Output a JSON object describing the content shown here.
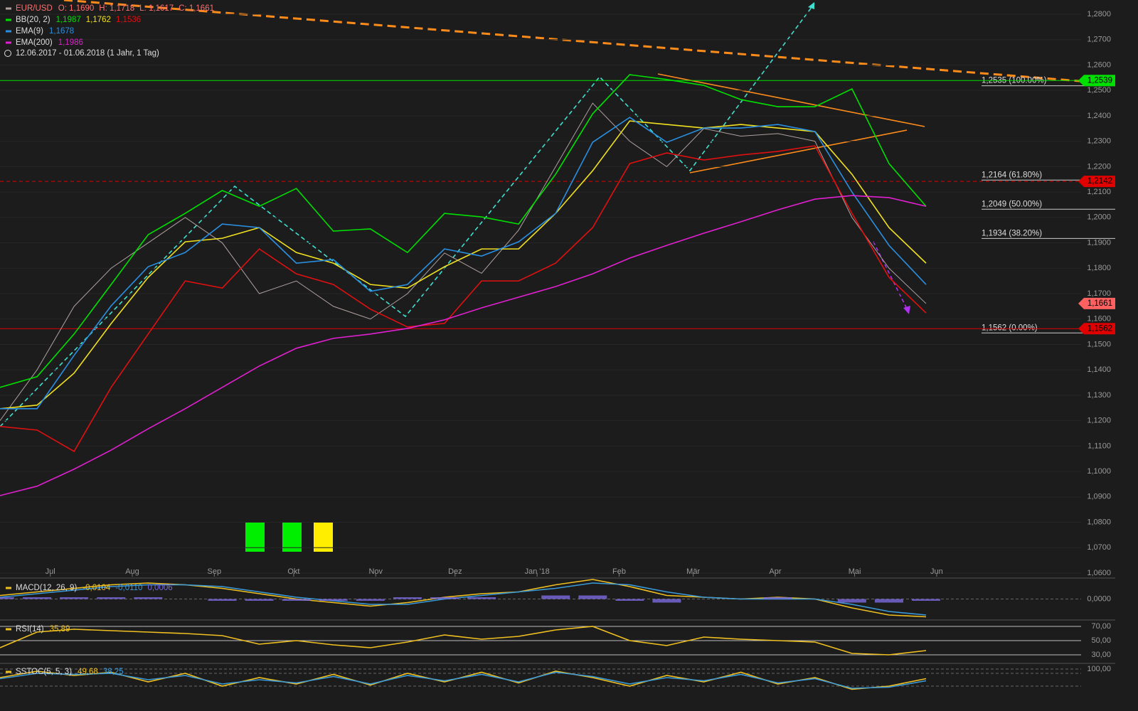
{
  "chart_data": [
    {
      "type": "line",
      "period": "12.06.2017 - 01.06.2018  (1 Jahr, 1 Tag)",
      "x": [
        0,
        14,
        28,
        42,
        56,
        70,
        84,
        98,
        112,
        126,
        140,
        154,
        168,
        182,
        196,
        210,
        224,
        238,
        252,
        266,
        280,
        294,
        308,
        322,
        336,
        350
      ],
      "xlim": [
        0,
        421.5
      ],
      "ylim": [
        1.06,
        1.28
      ],
      "xticks": [
        {
          "value": 19,
          "label": "Jul"
        },
        {
          "value": 50,
          "label": "Aug"
        },
        {
          "value": 81,
          "label": "Sep"
        },
        {
          "value": 111,
          "label": "Okt"
        },
        {
          "value": 142,
          "label": "Nov"
        },
        {
          "value": 172,
          "label": "Dez"
        },
        {
          "value": 203,
          "label": "Jan '18"
        },
        {
          "value": 234,
          "label": "Feb"
        },
        {
          "value": 262,
          "label": "Mär"
        },
        {
          "value": 293,
          "label": "Apr"
        },
        {
          "value": 323,
          "label": "Mai"
        },
        {
          "value": 354,
          "label": "Jun"
        }
      ],
      "yticks": [
        {
          "value": 1.06,
          "label": "1,0600"
        },
        {
          "value": 1.07,
          "label": "1,0700"
        },
        {
          "value": 1.08,
          "label": "1,0800"
        },
        {
          "value": 1.09,
          "label": "1,0900"
        },
        {
          "value": 1.1,
          "label": "1,1000"
        },
        {
          "value": 1.11,
          "label": "1,1100"
        },
        {
          "value": 1.12,
          "label": "1,1200"
        },
        {
          "value": 1.13,
          "label": "1,1300"
        },
        {
          "value": 1.14,
          "label": "1,1400"
        },
        {
          "value": 1.15,
          "label": "1,1500"
        },
        {
          "value": 1.16,
          "label": "1,1600"
        },
        {
          "value": 1.17,
          "label": "1,1700"
        },
        {
          "value": 1.18,
          "label": "1,1800"
        },
        {
          "value": 1.19,
          "label": "1,1900"
        },
        {
          "value": 1.2,
          "label": "1,2000"
        },
        {
          "value": 1.21,
          "label": "1,2100"
        },
        {
          "value": 1.22,
          "label": "1,2200"
        },
        {
          "value": 1.23,
          "label": "1,2300"
        },
        {
          "value": 1.24,
          "label": "1,2400"
        },
        {
          "value": 1.25,
          "label": "1,2500"
        },
        {
          "value": 1.26,
          "label": "1,2600"
        },
        {
          "value": 1.27,
          "label": "1,2700"
        },
        {
          "value": 1.28,
          "label": "1,2800"
        }
      ],
      "series": [
        {
          "name": "EUR/USD",
          "color": "#b0a0a0",
          "values": [
            1.12,
            1.14,
            1.165,
            1.18,
            1.19,
            1.2,
            1.19,
            1.17,
            1.175,
            1.165,
            1.16,
            1.17,
            1.186,
            1.178,
            1.195,
            1.22,
            1.245,
            1.23,
            1.22,
            1.235,
            1.232,
            1.233,
            1.23,
            1.2,
            1.18,
            1.1661
          ],
          "last": [
            {
              "value": 1.169,
              "label": "O: 1,1690"
            },
            {
              "value": 1.1718,
              "label": "H: 1,1718"
            },
            {
              "value": 1.1617,
              "label": "L: 1,1617"
            },
            {
              "value": 1.1661,
              "label": "C: 1,1661"
            }
          ]
        },
        {
          "name": "BB(20, 2)",
          "color": "#00e000",
          "values": [
            1.1331,
            1.1373,
            1.1541,
            1.1736,
            1.1932,
            1.2016,
            1.2106,
            1.2044,
            1.2114,
            1.1946,
            1.1955,
            1.1862,
            1.2016,
            1.2002,
            1.1974,
            1.217,
            1.2408,
            1.2562,
            1.2543,
            1.252,
            1.2464,
            1.2436,
            1.2436,
            1.2506,
            1.2212,
            1.2044
          ],
          "last": [
            {
              "value": 1.1987,
              "label": "1,1987"
            }
          ]
        },
        {
          "color": "#f0e020",
          "values": [
            1.1247,
            1.1261,
            1.1387,
            1.1582,
            1.1764,
            1.1904,
            1.1918,
            1.196,
            1.1862,
            1.182,
            1.1736,
            1.1722,
            1.1806,
            1.1876,
            1.1876,
            1.2016,
            1.2184,
            1.238,
            1.2366,
            1.2352,
            1.2366,
            1.2352,
            1.2338,
            1.217,
            1.196,
            1.182
          ],
          "last": [
            {
              "value": 1.1762,
              "label": "1,1762"
            }
          ]
        },
        {
          "color": "#e01010",
          "values": [
            1.1177,
            1.1163,
            1.1079,
            1.1331,
            1.1541,
            1.175,
            1.1722,
            1.1876,
            1.1778,
            1.1736,
            1.1639,
            1.1569,
            1.1583,
            1.175,
            1.175,
            1.182,
            1.196,
            1.2212,
            1.2254,
            1.2226,
            1.2246,
            1.226,
            1.2282,
            1.2016,
            1.1764,
            1.1624
          ],
          "last": [
            {
              "value": 1.1536,
              "label": "1,1536"
            }
          ]
        },
        {
          "name": "EMA(9)",
          "color": "#2a8fe0",
          "values": [
            1.1247,
            1.1247,
            1.1457,
            1.1652,
            1.1806,
            1.1862,
            1.1974,
            1.196,
            1.182,
            1.1834,
            1.1709,
            1.1736,
            1.1876,
            1.1848,
            1.1904,
            1.2016,
            1.2296,
            1.2394,
            1.2296,
            1.2352,
            1.2352,
            1.2366,
            1.2338,
            1.21,
            1.189,
            1.1736
          ],
          "last": [
            {
              "value": 1.1678,
              "label": "1,1678"
            }
          ]
        },
        {
          "name": "EMA(200)",
          "color": "#e020d0",
          "values": [
            1.0905,
            1.0942,
            1.1009,
            1.1084,
            1.1168,
            1.1247,
            1.1331,
            1.1415,
            1.1485,
            1.1524,
            1.1541,
            1.1563,
            1.1597,
            1.1644,
            1.1686,
            1.1728,
            1.1778,
            1.184,
            1.189,
            1.1938,
            1.1983,
            1.203,
            1.2072,
            1.2086,
            1.2078,
            1.2044
          ],
          "last": [
            {
              "value": 1.1986,
              "label": "1,1986"
            }
          ]
        }
      ],
      "levels": [
        {
          "value": 1.2535,
          "label": "1,2535 (100.00%)"
        },
        {
          "value": 1.2164,
          "label": "1,2164 (61.80%)"
        },
        {
          "value": 1.2049,
          "label": "1,2049 (50.00%)"
        },
        {
          "value": 1.1934,
          "label": "1,1934 (38.20%)"
        },
        {
          "value": 1.1562,
          "label": "1,1562 (0.00%)"
        }
      ],
      "price_tags": [
        {
          "value": 1.2539,
          "label": "1,2539",
          "color": "#00e000",
          "line": "solid"
        },
        {
          "value": 1.2142,
          "label": "1,2142",
          "color": "#e00000",
          "line": "dashed"
        },
        {
          "value": 1.1661,
          "label": "1,1661",
          "color": "#ff6060"
        },
        {
          "value": 1.1562,
          "label": "1,1562",
          "color": "#e00000",
          "line": "solid"
        }
      ]
    },
    {
      "type": "line",
      "x": [
        0,
        14,
        28,
        42,
        56,
        70,
        84,
        98,
        112,
        126,
        140,
        154,
        168,
        182,
        196,
        210,
        224,
        238,
        252,
        266,
        280,
        294,
        308,
        322,
        336,
        350
      ],
      "xlim": [
        0,
        421.5
      ],
      "ylim": [
        -0.011,
        0.011
      ],
      "yticks": [
        {
          "value": 0,
          "label": "0,0000"
        }
      ],
      "series": [
        {
          "name": "MACD(12, 26, 9)",
          "color": "#f0c020",
          "values": [
            0.002,
            0.004,
            0.006,
            0.008,
            0.009,
            0.008,
            0.006,
            0.003,
            0,
            -0.002,
            -0.004,
            -0.002,
            0.001,
            0.003,
            0.004,
            0.008,
            0.011,
            0.007,
            0.002,
            0.001,
            0,
            0.001,
            0,
            -0.005,
            -0.009,
            -0.01
          ],
          "last": [
            {
              "value": -0.0104,
              "label": "-0,0104"
            }
          ]
        },
        {
          "color": "#3a9ad9",
          "values": [
            0.001,
            0.003,
            0.005,
            0.007,
            0.008,
            0.008,
            0.007,
            0.004,
            0.001,
            -0.001,
            -0.003,
            -0.003,
            0,
            0.002,
            0.004,
            0.006,
            0.009,
            0.008,
            0.004,
            0.001,
            0,
            0,
            0,
            -0.003,
            -0.007,
            -0.009
          ],
          "last": [
            {
              "value": -0.011,
              "label": "-0,0110"
            }
          ]
        },
        {
          "kind": "bar",
          "color": "#7a6ae0",
          "values": [
            0.001,
            0.001,
            0.001,
            0.001,
            0.001,
            0,
            -0.001,
            -0.001,
            -0.001,
            -0.001,
            -0.001,
            0.001,
            0.001,
            0.001,
            0,
            0.002,
            0.002,
            -0.001,
            -0.002,
            0,
            0,
            0.001,
            0,
            -0.002,
            -0.002,
            -0.001
          ],
          "last": [
            {
              "value": 0.0006,
              "label": "0,0006"
            }
          ]
        }
      ]
    },
    {
      "type": "line",
      "x": [
        0,
        14,
        28,
        42,
        56,
        70,
        84,
        98,
        112,
        126,
        140,
        154,
        168,
        182,
        196,
        210,
        224,
        238,
        252,
        266,
        280,
        294,
        308,
        322,
        336,
        350
      ],
      "xlim": [
        0,
        421.5
      ],
      "ylim": [
        20,
        76
      ],
      "yticks": [
        {
          "value": 30,
          "label": "30,00"
        },
        {
          "value": 50,
          "label": "50,00"
        },
        {
          "value": 70,
          "label": "70,00"
        }
      ],
      "series": [
        {
          "name": "RSI(14)",
          "color": "#f0c020",
          "values": [
            40,
            62,
            66,
            64,
            62,
            60,
            57,
            45,
            50,
            44,
            40,
            48,
            58,
            52,
            56,
            65,
            70,
            50,
            43,
            55,
            52,
            50,
            48,
            32,
            30,
            36
          ],
          "last": [
            {
              "value": 35.89,
              "label": "35,89"
            }
          ]
        }
      ]
    },
    {
      "type": "line",
      "x": [
        0,
        14,
        28,
        42,
        56,
        70,
        84,
        98,
        112,
        126,
        140,
        154,
        168,
        182,
        196,
        210,
        224,
        238,
        252,
        266,
        280,
        294,
        308,
        322,
        336,
        350
      ],
      "xlim": [
        0,
        421.5
      ],
      "ylim": [
        0,
        100
      ],
      "yticks": [
        {
          "value": 100,
          "label": "100,00"
        }
      ],
      "series": [
        {
          "name": "SSTOC(5, 5, 3)",
          "color": "#f0c020",
          "values": [
            60,
            90,
            70,
            85,
            40,
            80,
            20,
            60,
            30,
            75,
            25,
            80,
            40,
            85,
            35,
            90,
            60,
            20,
            70,
            40,
            85,
            30,
            60,
            5,
            20,
            55
          ],
          "last": [
            {
              "value": 49.68,
              "label": "49,68"
            }
          ]
        },
        {
          "color": "#3a9ad9",
          "values": [
            55,
            80,
            75,
            80,
            50,
            70,
            30,
            50,
            35,
            65,
            30,
            70,
            45,
            75,
            40,
            85,
            65,
            30,
            60,
            45,
            75,
            35,
            55,
            10,
            15,
            45
          ],
          "last": [
            {
              "value": 38.25,
              "label": "38,25"
            }
          ]
        }
      ]
    }
  ]
}
